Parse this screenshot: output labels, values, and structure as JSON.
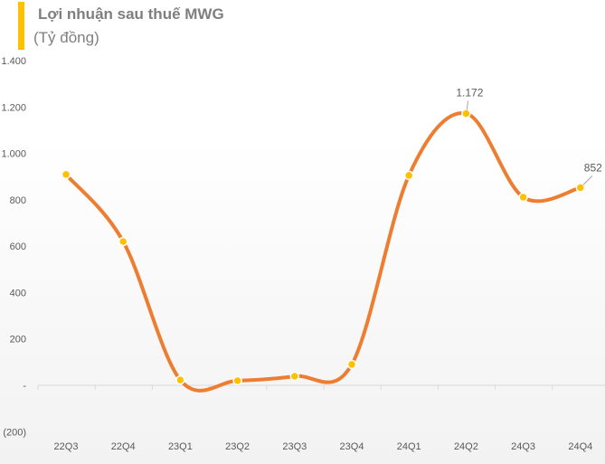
{
  "chart_data": {
    "type": "line",
    "title": "Lợi nhuận sau thuế MWG",
    "subtitle": "(Tỷ đồng)",
    "categories": [
      "22Q3",
      "22Q4",
      "23Q1",
      "23Q2",
      "23Q3",
      "23Q4",
      "24Q1",
      "24Q2",
      "24Q3",
      "24Q4"
    ],
    "values": [
      909,
      620,
      23,
      20,
      39,
      90,
      905,
      1172,
      811,
      852
    ],
    "data_labels": {
      "7": "1.172",
      "9": "852"
    },
    "ylim": [
      -200,
      1400
    ],
    "yticks": [
      -200,
      0,
      200,
      400,
      600,
      800,
      1000,
      1200,
      1400
    ],
    "ytick_labels": [
      "(200)",
      "-",
      "200",
      "400",
      "600",
      "800",
      "1.000",
      "1.200",
      "1.400"
    ],
    "smooth": true,
    "grid": false,
    "colors": {
      "line": "#ED7D31",
      "marker": "#FFC000",
      "accent_bar": "#FFC000",
      "text": "#595959"
    }
  }
}
